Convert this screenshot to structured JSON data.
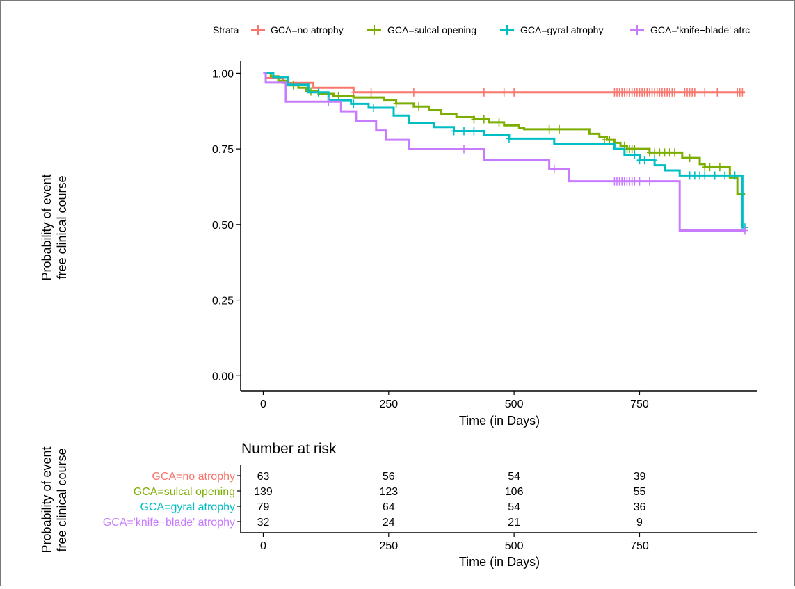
{
  "chart_data": {
    "type": "line",
    "subtype": "kaplan-meier",
    "legend": {
      "title": "Strata",
      "position": "top",
      "entries": [
        "GCA=no atrophy",
        "GCA=sulcal opening",
        "GCA=gyral atrophy",
        "GCA='knife−blade' atrc"
      ]
    },
    "xlabel": "Time (in Days)",
    "ylabel_line1": "Probability of event",
    "ylabel_line2": "free clinical course",
    "xlim": [
      -45,
      985
    ],
    "ylim": [
      -0.05,
      1.04
    ],
    "xticks": [
      0,
      250,
      500,
      750
    ],
    "xtick_labels": [
      "0",
      "250",
      "500",
      "750"
    ],
    "yticks": [
      0.0,
      0.25,
      0.5,
      0.75,
      1.0
    ],
    "ytick_labels": [
      "0.00",
      "0.25",
      "0.50",
      "0.75",
      "1.00"
    ],
    "grid": false,
    "series": [
      {
        "name": "GCA=no atrophy",
        "color": "#F8766D",
        "steps": [
          [
            0,
            1.0
          ],
          [
            5,
            0.984
          ],
          [
            40,
            0.968
          ],
          [
            100,
            0.952
          ],
          [
            180,
            0.937
          ],
          [
            960,
            0.937
          ]
        ],
        "censor": [
          [
            180,
            0.937
          ],
          [
            215,
            0.937
          ],
          [
            300,
            0.937
          ],
          [
            440,
            0.937
          ],
          [
            480,
            0.937
          ],
          [
            500,
            0.937
          ],
          [
            700,
            0.937
          ],
          [
            705,
            0.937
          ],
          [
            710,
            0.937
          ],
          [
            715,
            0.937
          ],
          [
            720,
            0.937
          ],
          [
            725,
            0.937
          ],
          [
            730,
            0.937
          ],
          [
            735,
            0.937
          ],
          [
            740,
            0.937
          ],
          [
            745,
            0.937
          ],
          [
            750,
            0.937
          ],
          [
            755,
            0.937
          ],
          [
            760,
            0.937
          ],
          [
            765,
            0.937
          ],
          [
            770,
            0.937
          ],
          [
            775,
            0.937
          ],
          [
            780,
            0.937
          ],
          [
            785,
            0.937
          ],
          [
            790,
            0.937
          ],
          [
            795,
            0.937
          ],
          [
            800,
            0.937
          ],
          [
            805,
            0.937
          ],
          [
            810,
            0.937
          ],
          [
            815,
            0.937
          ],
          [
            820,
            0.937
          ],
          [
            840,
            0.937
          ],
          [
            845,
            0.937
          ],
          [
            850,
            0.937
          ],
          [
            855,
            0.937
          ],
          [
            860,
            0.937
          ],
          [
            880,
            0.937
          ],
          [
            905,
            0.937
          ],
          [
            945,
            0.937
          ],
          [
            950,
            0.937
          ],
          [
            955,
            0.937
          ]
        ]
      },
      {
        "name": "GCA=sulcal opening",
        "color": "#7CAE00",
        "steps": [
          [
            0,
            1.0
          ],
          [
            15,
            0.99
          ],
          [
            30,
            0.975
          ],
          [
            50,
            0.96
          ],
          [
            70,
            0.952
          ],
          [
            85,
            0.94
          ],
          [
            110,
            0.932
          ],
          [
            140,
            0.925
          ],
          [
            180,
            0.92
          ],
          [
            240,
            0.912
          ],
          [
            265,
            0.9
          ],
          [
            300,
            0.89
          ],
          [
            330,
            0.878
          ],
          [
            355,
            0.865
          ],
          [
            385,
            0.855
          ],
          [
            420,
            0.848
          ],
          [
            450,
            0.838
          ],
          [
            480,
            0.828
          ],
          [
            510,
            0.82
          ],
          [
            520,
            0.815
          ],
          [
            650,
            0.8
          ],
          [
            670,
            0.79
          ],
          [
            685,
            0.78
          ],
          [
            700,
            0.77
          ],
          [
            712,
            0.76
          ],
          [
            725,
            0.75
          ],
          [
            770,
            0.738
          ],
          [
            835,
            0.72
          ],
          [
            870,
            0.7
          ],
          [
            880,
            0.69
          ],
          [
            930,
            0.655
          ],
          [
            945,
            0.6
          ],
          [
            960,
            0.6
          ]
        ],
        "censor": [
          [
            60,
            0.96
          ],
          [
            95,
            0.94
          ],
          [
            150,
            0.925
          ],
          [
            265,
            0.9
          ],
          [
            310,
            0.89
          ],
          [
            420,
            0.848
          ],
          [
            440,
            0.848
          ],
          [
            470,
            0.838
          ],
          [
            570,
            0.815
          ],
          [
            590,
            0.815
          ],
          [
            680,
            0.78
          ],
          [
            690,
            0.78
          ],
          [
            720,
            0.76
          ],
          [
            725,
            0.75
          ],
          [
            730,
            0.75
          ],
          [
            735,
            0.75
          ],
          [
            740,
            0.75
          ],
          [
            770,
            0.738
          ],
          [
            780,
            0.738
          ],
          [
            790,
            0.738
          ],
          [
            800,
            0.738
          ],
          [
            810,
            0.738
          ],
          [
            820,
            0.738
          ],
          [
            850,
            0.72
          ],
          [
            880,
            0.69
          ],
          [
            890,
            0.69
          ],
          [
            910,
            0.69
          ],
          [
            955,
            0.6
          ]
        ]
      },
      {
        "name": "GCA=gyral atrophy",
        "color": "#00BFC4",
        "steps": [
          [
            0,
            1.0
          ],
          [
            20,
            0.987
          ],
          [
            50,
            0.962
          ],
          [
            90,
            0.937
          ],
          [
            130,
            0.911
          ],
          [
            175,
            0.899
          ],
          [
            210,
            0.886
          ],
          [
            260,
            0.86
          ],
          [
            290,
            0.835
          ],
          [
            340,
            0.822
          ],
          [
            380,
            0.809
          ],
          [
            440,
            0.797
          ],
          [
            490,
            0.784
          ],
          [
            580,
            0.767
          ],
          [
            700,
            0.75
          ],
          [
            720,
            0.73
          ],
          [
            750,
            0.713
          ],
          [
            780,
            0.696
          ],
          [
            800,
            0.679
          ],
          [
            830,
            0.662
          ],
          [
            955,
            0.49
          ],
          [
            960,
            0.49
          ]
        ],
        "censor": [
          [
            110,
            0.937
          ],
          [
            180,
            0.899
          ],
          [
            220,
            0.886
          ],
          [
            380,
            0.809
          ],
          [
            400,
            0.809
          ],
          [
            420,
            0.809
          ],
          [
            490,
            0.784
          ],
          [
            740,
            0.73
          ],
          [
            750,
            0.713
          ],
          [
            760,
            0.713
          ],
          [
            780,
            0.713
          ],
          [
            850,
            0.662
          ],
          [
            860,
            0.662
          ],
          [
            870,
            0.662
          ],
          [
            880,
            0.662
          ],
          [
            900,
            0.662
          ],
          [
            920,
            0.662
          ],
          [
            940,
            0.662
          ],
          [
            960,
            0.49
          ]
        ]
      },
      {
        "name": "GCA='knife−blade' atrc",
        "color": "#C77CFF",
        "steps": [
          [
            0,
            1.0
          ],
          [
            5,
            0.969
          ],
          [
            45,
            0.906
          ],
          [
            155,
            0.874
          ],
          [
            185,
            0.843
          ],
          [
            225,
            0.811
          ],
          [
            245,
            0.78
          ],
          [
            290,
            0.749
          ],
          [
            440,
            0.714
          ],
          [
            570,
            0.684
          ],
          [
            610,
            0.643
          ],
          [
            830,
            0.48
          ],
          [
            960,
            0.48
          ]
        ],
        "censor": [
          [
            130,
            0.906
          ],
          [
            400,
            0.749
          ],
          [
            580,
            0.684
          ],
          [
            700,
            0.643
          ],
          [
            705,
            0.643
          ],
          [
            710,
            0.643
          ],
          [
            715,
            0.643
          ],
          [
            720,
            0.643
          ],
          [
            725,
            0.643
          ],
          [
            730,
            0.643
          ],
          [
            735,
            0.643
          ],
          [
            740,
            0.643
          ],
          [
            750,
            0.643
          ],
          [
            770,
            0.643
          ],
          [
            960,
            0.48
          ]
        ]
      }
    ]
  },
  "risk_table": {
    "title": "Number at risk",
    "xlabel": "Time (in Days)",
    "ylabel_line1": "Probability of event",
    "ylabel_line2": "free clinical course",
    "xticks": [
      0,
      250,
      500,
      750
    ],
    "xtick_labels": [
      "0",
      "250",
      "500",
      "750"
    ],
    "rows": [
      {
        "label": "GCA=no atrophy",
        "color": "#F8766D",
        "counts": [
          "63",
          "56",
          "54",
          "39"
        ]
      },
      {
        "label": "GCA=sulcal opening",
        "color": "#7CAE00",
        "counts": [
          "139",
          "123",
          "106",
          "55"
        ]
      },
      {
        "label": "GCA=gyral atrophy",
        "color": "#00BFC4",
        "counts": [
          "79",
          "64",
          "54",
          "36"
        ]
      },
      {
        "label": "GCA='knife−blade' atrophy",
        "color": "#C77CFF",
        "counts": [
          "32",
          "24",
          "21",
          "9"
        ]
      }
    ]
  }
}
